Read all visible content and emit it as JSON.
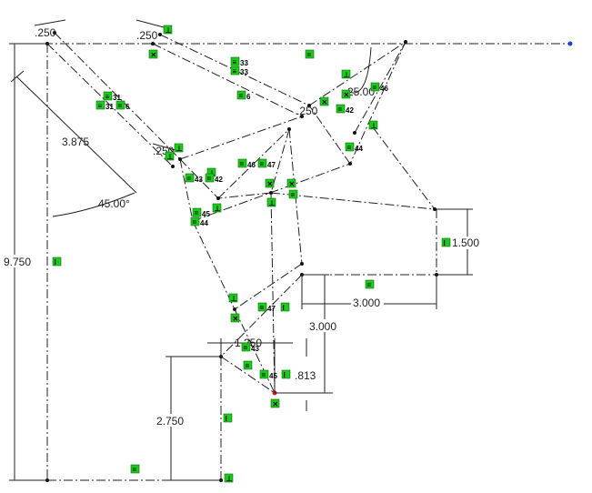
{
  "sketch": {
    "colors": {
      "line": "#222222",
      "relation": "#1ec81e",
      "origin": "#2a3fd0",
      "selected": "#d81b1b"
    }
  },
  "dimensions": {
    "d_top_left": ".250",
    "d_top_mid": ".250",
    "d_center": ".250",
    "d_arm_end": ".250",
    "d_3875": "3.875",
    "d_angle45": "45.00°",
    "d_angle25": "25.00°",
    "d_9750": "9.750",
    "d_1500": "1.500",
    "d_3000h": "3.000",
    "d_3000v": "3.000",
    "d_1250": "1.250",
    "d_813": ".813",
    "d_2750": "2.750"
  },
  "relations": [
    {
      "id": "r1",
      "sym": "⊥",
      "num": ""
    },
    {
      "id": "r2",
      "sym": "✕",
      "num": ""
    },
    {
      "id": "r3",
      "sym": "=",
      "num": ""
    },
    {
      "id": "r4",
      "sym": "≡",
      "num": "33"
    },
    {
      "id": "r5",
      "sym": "≡",
      "num": "33"
    },
    {
      "id": "r6",
      "sym": "=",
      "num": "6"
    },
    {
      "id": "r7",
      "sym": "⊥",
      "num": ""
    },
    {
      "id": "r8",
      "sym": "✕",
      "num": ""
    },
    {
      "id": "r9",
      "sym": "=",
      "num": "46"
    },
    {
      "id": "r10",
      "sym": "≡",
      "num": "31"
    },
    {
      "id": "r11",
      "sym": "≡",
      "num": "31"
    },
    {
      "id": "r12",
      "sym": "=",
      "num": "6"
    },
    {
      "id": "r13",
      "sym": "⊥",
      "num": ""
    },
    {
      "id": "r14",
      "sym": "=",
      "num": "42"
    },
    {
      "id": "r15",
      "sym": "✕",
      "num": ""
    },
    {
      "id": "r16",
      "sym": "⊥",
      "num": ""
    },
    {
      "id": "r17",
      "sym": "=",
      "num": "44"
    },
    {
      "id": "r18",
      "sym": "⊥",
      "num": ""
    },
    {
      "id": "r19",
      "sym": "⊥",
      "num": ""
    },
    {
      "id": "r20",
      "sym": "=",
      "num": "46"
    },
    {
      "id": "r21",
      "sym": "=",
      "num": "47"
    },
    {
      "id": "r22",
      "sym": "=",
      "num": "43"
    },
    {
      "id": "r23",
      "sym": "=",
      "num": "42"
    },
    {
      "id": "r24",
      "sym": "✕",
      "num": ""
    },
    {
      "id": "r25",
      "sym": "✕",
      "num": ""
    },
    {
      "id": "r26",
      "sym": "=",
      "num": ""
    },
    {
      "id": "r27",
      "sym": "⊥",
      "num": ""
    },
    {
      "id": "r28",
      "sym": "=",
      "num": "45"
    },
    {
      "id": "r29",
      "sym": "⊥",
      "num": ""
    },
    {
      "id": "r30",
      "sym": "=",
      "num": "44"
    },
    {
      "id": "r31",
      "sym": "I",
      "num": ""
    },
    {
      "id": "r32",
      "sym": "I",
      "num": ""
    },
    {
      "id": "r33",
      "sym": "=",
      "num": ""
    },
    {
      "id": "r34",
      "sym": "⊥",
      "num": ""
    },
    {
      "id": "r35",
      "sym": "=",
      "num": "47"
    },
    {
      "id": "r36",
      "sym": "I",
      "num": ""
    },
    {
      "id": "r37",
      "sym": "✕",
      "num": ""
    },
    {
      "id": "r38",
      "sym": "=",
      "num": "43"
    },
    {
      "id": "r39",
      "sym": "=",
      "num": ""
    },
    {
      "id": "r40",
      "sym": "=",
      "num": "45"
    },
    {
      "id": "r41",
      "sym": "I",
      "num": ""
    },
    {
      "id": "r42",
      "sym": "✕",
      "num": ""
    },
    {
      "id": "r43",
      "sym": "I",
      "num": ""
    },
    {
      "id": "r44",
      "sym": "=",
      "num": ""
    },
    {
      "id": "r45",
      "sym": "⊥",
      "num": ""
    }
  ]
}
